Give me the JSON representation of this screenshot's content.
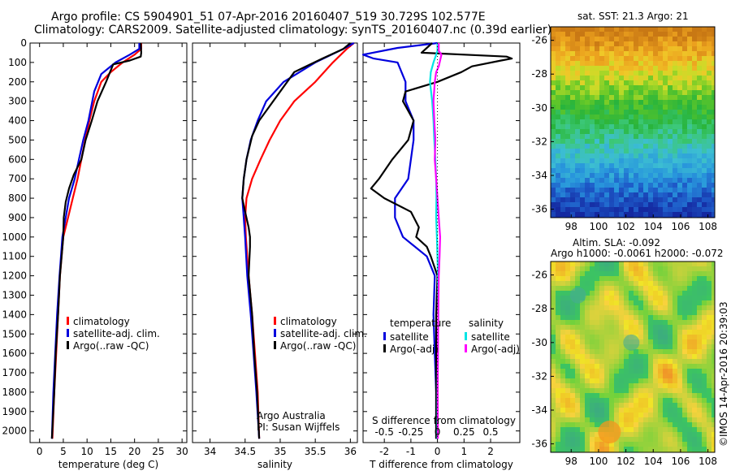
{
  "header": {
    "line1": "Argo profile: CS 5904901_51 07-Apr-2016 20160407_519 30.729S 102.577E",
    "line2": "Climatology: CARS2009. Satellite-adjusted climatology: synTS_20160407.nc (0.39d earlier)"
  },
  "map_top_title": "sat. SST: 21.3 Argo: 21",
  "map_bottom_title1": "Altim. SLA: -0.092",
  "map_bottom_title2": "Argo h1000: -0.0061 h2000: -0.072",
  "credit": "©IMOS 14-Apr-2016 20:39:03",
  "colors": {
    "red": "#ff0000",
    "blue": "#0000dd",
    "black": "#000000",
    "cyan": "#00e5e5",
    "magenta": "#ff00ff"
  },
  "chart_data": [
    {
      "type": "line",
      "xlabel": "temperature (deg C)",
      "ylabel": "",
      "xlim": [
        -2,
        31
      ],
      "ylim": [
        2060,
        0
      ],
      "xticks": [
        "0",
        "5",
        "10",
        "15",
        "20",
        "25",
        "30"
      ],
      "yticks": [
        "0",
        "100",
        "200",
        "300",
        "400",
        "500",
        "600",
        "700",
        "800",
        "900",
        "1000",
        "1100",
        "1200",
        "1300",
        "1400",
        "1500",
        "1600",
        "1700",
        "1800",
        "1900",
        "2000"
      ],
      "legend": [
        "climatology",
        "satellite-adj. clim.",
        "Argo(..raw -QC)"
      ],
      "legend_position": "bottom-center",
      "series": [
        {
          "name": "climatology",
          "color": "red",
          "points": [
            [
              21.4,
              0
            ],
            [
              21.4,
              30
            ],
            [
              20,
              60
            ],
            [
              17.5,
              100
            ],
            [
              15,
              150
            ],
            [
              13,
              200
            ],
            [
              11.5,
              300
            ],
            [
              10.5,
              400
            ],
            [
              9.6,
              500
            ],
            [
              8.8,
              600
            ],
            [
              8,
              700
            ],
            [
              7,
              800
            ],
            [
              6,
              900
            ],
            [
              5,
              1000
            ],
            [
              4.3,
              1200
            ],
            [
              3.9,
              1400
            ],
            [
              3.5,
              1600
            ],
            [
              3.1,
              1800
            ],
            [
              2.7,
              2040
            ]
          ]
        },
        {
          "name": "satellite-adj. clim.",
          "color": "blue",
          "points": [
            [
              21,
              0
            ],
            [
              21,
              30
            ],
            [
              19,
              60
            ],
            [
              16,
              100
            ],
            [
              13,
              160
            ],
            [
              11.5,
              250
            ],
            [
              10.3,
              400
            ],
            [
              9.2,
              500
            ],
            [
              8.3,
              600
            ],
            [
              7.4,
              700
            ],
            [
              6.2,
              800
            ],
            [
              5.5,
              900
            ],
            [
              4.8,
              1000
            ],
            [
              4.2,
              1200
            ],
            [
              3.7,
              1400
            ],
            [
              3.3,
              1600
            ],
            [
              2.9,
              1800
            ],
            [
              2.6,
              2040
            ]
          ]
        },
        {
          "name": "Argo(..raw -QC)",
          "color": "black",
          "points": [
            [
              21.3,
              0
            ],
            [
              21.4,
              50
            ],
            [
              21.3,
              70
            ],
            [
              19,
              90
            ],
            [
              15.5,
              110
            ],
            [
              14,
              200
            ],
            [
              12.2,
              300
            ],
            [
              11,
              400
            ],
            [
              9.7,
              500
            ],
            [
              8.8,
              600
            ],
            [
              7.2,
              680
            ],
            [
              6.2,
              750
            ],
            [
              5.5,
              820
            ],
            [
              5.1,
              900
            ],
            [
              5,
              1000
            ],
            [
              4.3,
              1200
            ],
            [
              3.9,
              1400
            ],
            [
              3.4,
              1600
            ],
            [
              3.1,
              1800
            ],
            [
              2.6,
              2040
            ]
          ]
        }
      ]
    },
    {
      "type": "line",
      "xlabel": "salinity",
      "xlim": [
        33.75,
        36.1
      ],
      "ylim": [
        2060,
        0
      ],
      "xticks": [
        "34",
        "34.5",
        "35",
        "35.5",
        "36"
      ],
      "legend": [
        "climatology",
        "satellite-adj. clim.",
        "Argo(..raw -QC)"
      ],
      "legend_position": "bottom-center",
      "annotation": [
        "Argo Australia",
        "PI: Susan Wijffels"
      ],
      "series": [
        {
          "name": "climatology",
          "color": "red",
          "points": [
            [
              36.05,
              0
            ],
            [
              35.95,
              30
            ],
            [
              35.75,
              100
            ],
            [
              35.5,
              200
            ],
            [
              35.2,
              300
            ],
            [
              35,
              400
            ],
            [
              34.85,
              500
            ],
            [
              34.72,
              600
            ],
            [
              34.6,
              700
            ],
            [
              34.52,
              800
            ],
            [
              34.5,
              900
            ],
            [
              34.51,
              1000
            ],
            [
              34.55,
              1200
            ],
            [
              34.6,
              1400
            ],
            [
              34.64,
              1600
            ],
            [
              34.68,
              1800
            ],
            [
              34.7,
              2040
            ]
          ]
        },
        {
          "name": "satellite-adj. clim.",
          "color": "blue",
          "points": [
            [
              36.05,
              0
            ],
            [
              35.9,
              30
            ],
            [
              35.5,
              100
            ],
            [
              35.05,
              200
            ],
            [
              34.8,
              300
            ],
            [
              34.68,
              400
            ],
            [
              34.58,
              500
            ],
            [
              34.52,
              600
            ],
            [
              34.48,
              700
            ],
            [
              34.46,
              800
            ],
            [
              34.48,
              900
            ],
            [
              34.5,
              1000
            ],
            [
              34.53,
              1200
            ],
            [
              34.58,
              1400
            ],
            [
              34.62,
              1600
            ],
            [
              34.66,
              1800
            ],
            [
              34.7,
              2040
            ]
          ]
        },
        {
          "name": "Argo(..raw -QC)",
          "color": "black",
          "points": [
            [
              36,
              0
            ],
            [
              35.9,
              30
            ],
            [
              35.6,
              80
            ],
            [
              35.2,
              150
            ],
            [
              35,
              250
            ],
            [
              34.8,
              350
            ],
            [
              34.7,
              400
            ],
            [
              34.6,
              480
            ],
            [
              34.52,
              600
            ],
            [
              34.48,
              700
            ],
            [
              34.46,
              800
            ],
            [
              34.5,
              870
            ],
            [
              34.55,
              950
            ],
            [
              34.57,
              1000
            ],
            [
              34.57,
              1050
            ],
            [
              34.55,
              1200
            ],
            [
              34.6,
              1400
            ],
            [
              34.63,
              1600
            ],
            [
              34.67,
              1800
            ],
            [
              34.7,
              2040
            ]
          ]
        }
      ]
    },
    {
      "type": "line",
      "xlabel": "T difference from climatology",
      "xlabel2": "S difference from climatology",
      "xlim": [
        -2.8,
        3.1
      ],
      "ylim": [
        2060,
        0
      ],
      "xticks": [
        "-2",
        "-1",
        "0",
        "1",
        "2"
      ],
      "xticks_top": [
        "-0.5",
        "-0.25",
        "0",
        "0.25",
        "0.5"
      ],
      "legend_titles": [
        "temperature",
        "salinity"
      ],
      "legend": [
        "satellite",
        "Argo(-adj)",
        "satellite",
        "Argo(-adj)"
      ],
      "legend_position": "bottom",
      "series": [
        {
          "name": "satellite",
          "variable": "temperature",
          "color": "blue",
          "points": [
            [
              0,
              0
            ],
            [
              -1.5,
              25
            ],
            [
              -2.8,
              60
            ],
            [
              -2.4,
              80
            ],
            [
              -1.5,
              100
            ],
            [
              -1.2,
              200
            ],
            [
              -1.2,
              300
            ],
            [
              -0.9,
              400
            ],
            [
              -0.9,
              500
            ],
            [
              -1,
              600
            ],
            [
              -1.1,
              700
            ],
            [
              -1.6,
              800
            ],
            [
              -1.6,
              900
            ],
            [
              -1.3,
              1000
            ],
            [
              -0.4,
              1100
            ],
            [
              -0.1,
              1200
            ],
            [
              -0.15,
              1400
            ],
            [
              -0.1,
              1600
            ],
            [
              -0.05,
              1800
            ],
            [
              -0.05,
              2040
            ]
          ]
        },
        {
          "name": "Argo(-adj)",
          "variable": "temperature",
          "color": "black",
          "points": [
            [
              -0.2,
              0
            ],
            [
              -0.6,
              50
            ],
            [
              2.6,
              70
            ],
            [
              2.8,
              80
            ],
            [
              2.4,
              90
            ],
            [
              1.3,
              120
            ],
            [
              0.9,
              150
            ],
            [
              0,
              200
            ],
            [
              -1.2,
              250
            ],
            [
              -1.3,
              300
            ],
            [
              -0.9,
              400
            ],
            [
              -1.1,
              500
            ],
            [
              -1.7,
              600
            ],
            [
              -2.2,
              700
            ],
            [
              -2.5,
              750
            ],
            [
              -2,
              800
            ],
            [
              -1,
              870
            ],
            [
              -0.7,
              950
            ],
            [
              -0.8,
              1000
            ],
            [
              -0.4,
              1050
            ],
            [
              -0.25,
              1100
            ],
            [
              0,
              1200
            ],
            [
              -0.05,
              1400
            ],
            [
              -0.05,
              1600
            ],
            [
              -0.05,
              1800
            ],
            [
              -0.05,
              2040
            ]
          ]
        },
        {
          "name": "satellite",
          "variable": "salinity",
          "color": "cyan",
          "points": [
            [
              0,
              0
            ],
            [
              0,
              40
            ],
            [
              -0.15,
              100
            ],
            [
              -0.25,
              150
            ],
            [
              -0.28,
              200
            ],
            [
              -0.2,
              300
            ],
            [
              -0.15,
              400
            ],
            [
              -0.12,
              500
            ],
            [
              -0.08,
              600
            ],
            [
              -0.05,
              700
            ],
            [
              -0.04,
              800
            ],
            [
              -0.05,
              900
            ],
            [
              -0.02,
              1000
            ],
            [
              0.02,
              1200
            ],
            [
              0.03,
              1400
            ],
            [
              0.02,
              1600
            ],
            [
              0,
              1800
            ],
            [
              0,
              2040
            ]
          ]
        },
        {
          "name": "Argo(-adj)",
          "variable": "salinity",
          "color": "magenta",
          "points": [
            [
              0.05,
              0
            ],
            [
              0.05,
              40
            ],
            [
              0.15,
              60
            ],
            [
              0.05,
              120
            ],
            [
              -0.05,
              150
            ],
            [
              -0.1,
              200
            ],
            [
              -0.15,
              300
            ],
            [
              -0.12,
              400
            ],
            [
              -0.08,
              500
            ],
            [
              -0.1,
              600
            ],
            [
              -0.05,
              700
            ],
            [
              0,
              800
            ],
            [
              0.05,
              900
            ],
            [
              0.1,
              1000
            ],
            [
              0.08,
              1100
            ],
            [
              0.05,
              1200
            ],
            [
              0.03,
              1400
            ],
            [
              0.02,
              1600
            ],
            [
              0.01,
              1800
            ],
            [
              0.02,
              2040
            ]
          ]
        }
      ]
    },
    {
      "type": "heatmap",
      "title": "sat. SST: 21.3 Argo: 21",
      "xlim": [
        96.5,
        108.5
      ],
      "ylim": [
        -36.5,
        -25.2
      ],
      "xticks": [
        "98",
        "100",
        "102",
        "104",
        "106",
        "108"
      ],
      "yticks": [
        "-26",
        "-28",
        "-30",
        "-32",
        "-34",
        "-36"
      ]
    },
    {
      "type": "heatmap",
      "title": "Altim. SLA: -0.092",
      "xlim": [
        96.5,
        108.5
      ],
      "ylim": [
        -36.5,
        -25.2
      ],
      "xticks": [
        "98",
        "100",
        "102",
        "104",
        "106",
        "108"
      ],
      "yticks": [
        "-26",
        "-28",
        "-30",
        "-32",
        "-34",
        "-36"
      ]
    }
  ]
}
